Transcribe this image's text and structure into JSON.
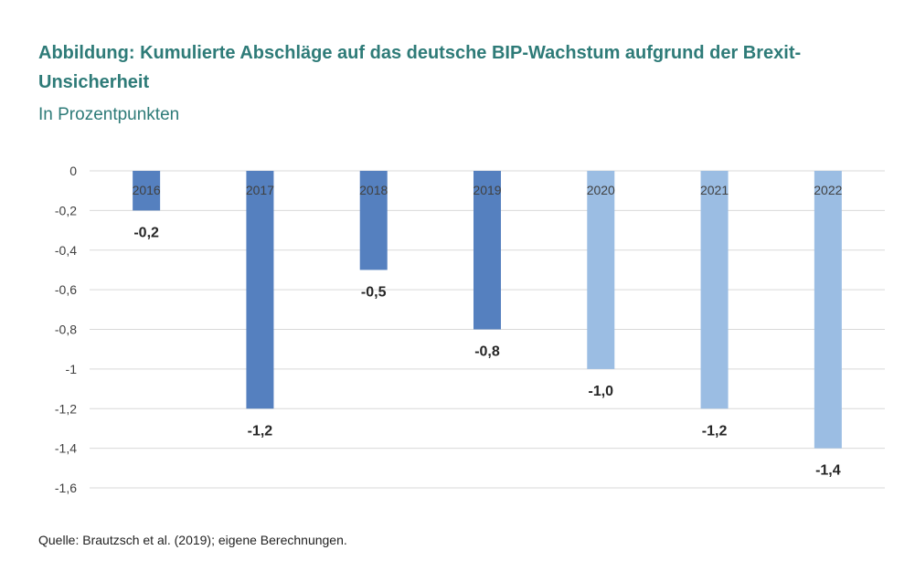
{
  "title": "Abbildung: Kumulierte Abschläge auf das deutsche BIP-Wachstum aufgrund der Brexit-Unsicherheit",
  "subtitle": "In Prozentpunkten",
  "source": "Quelle: Brautzsch et al. (2019); eigene Berechnungen.",
  "colors": {
    "title": "#2e7b78",
    "historical_bar": "#5580bf",
    "forecast_bar": "#9bbde3",
    "gridline": "#d9d9d9"
  },
  "chart_data": {
    "type": "bar",
    "title": "Abbildung: Kumulierte Abschläge auf das deutsche BIP-Wachstum aufgrund der Brexit-Unsicherheit",
    "subtitle": "In Prozentpunkten",
    "xlabel": "",
    "ylabel": "",
    "categories": [
      "2016",
      "2017",
      "2018",
      "2019",
      "2020",
      "2021",
      "2022"
    ],
    "values": [
      -0.2,
      -1.2,
      -0.5,
      -0.8,
      -1.0,
      -1.2,
      -1.4
    ],
    "data_labels": [
      "-0,2",
      "-1,2",
      "-0,5",
      "-0,8",
      "-1,0",
      "-1,2",
      "-1,4"
    ],
    "forecast": [
      false,
      false,
      false,
      false,
      true,
      true,
      true
    ],
    "ylim": [
      -1.6,
      0
    ],
    "yticks": [
      0,
      -0.2,
      -0.4,
      -0.6,
      -0.8,
      -1,
      -1.2,
      -1.4,
      -1.6
    ],
    "ytick_labels": [
      "0",
      "-0,2",
      "-0,4",
      "-0,6",
      "-0,8",
      "-1",
      "-1,2",
      "-1,4",
      "-1,6"
    ],
    "grid": true,
    "legend": "none"
  }
}
